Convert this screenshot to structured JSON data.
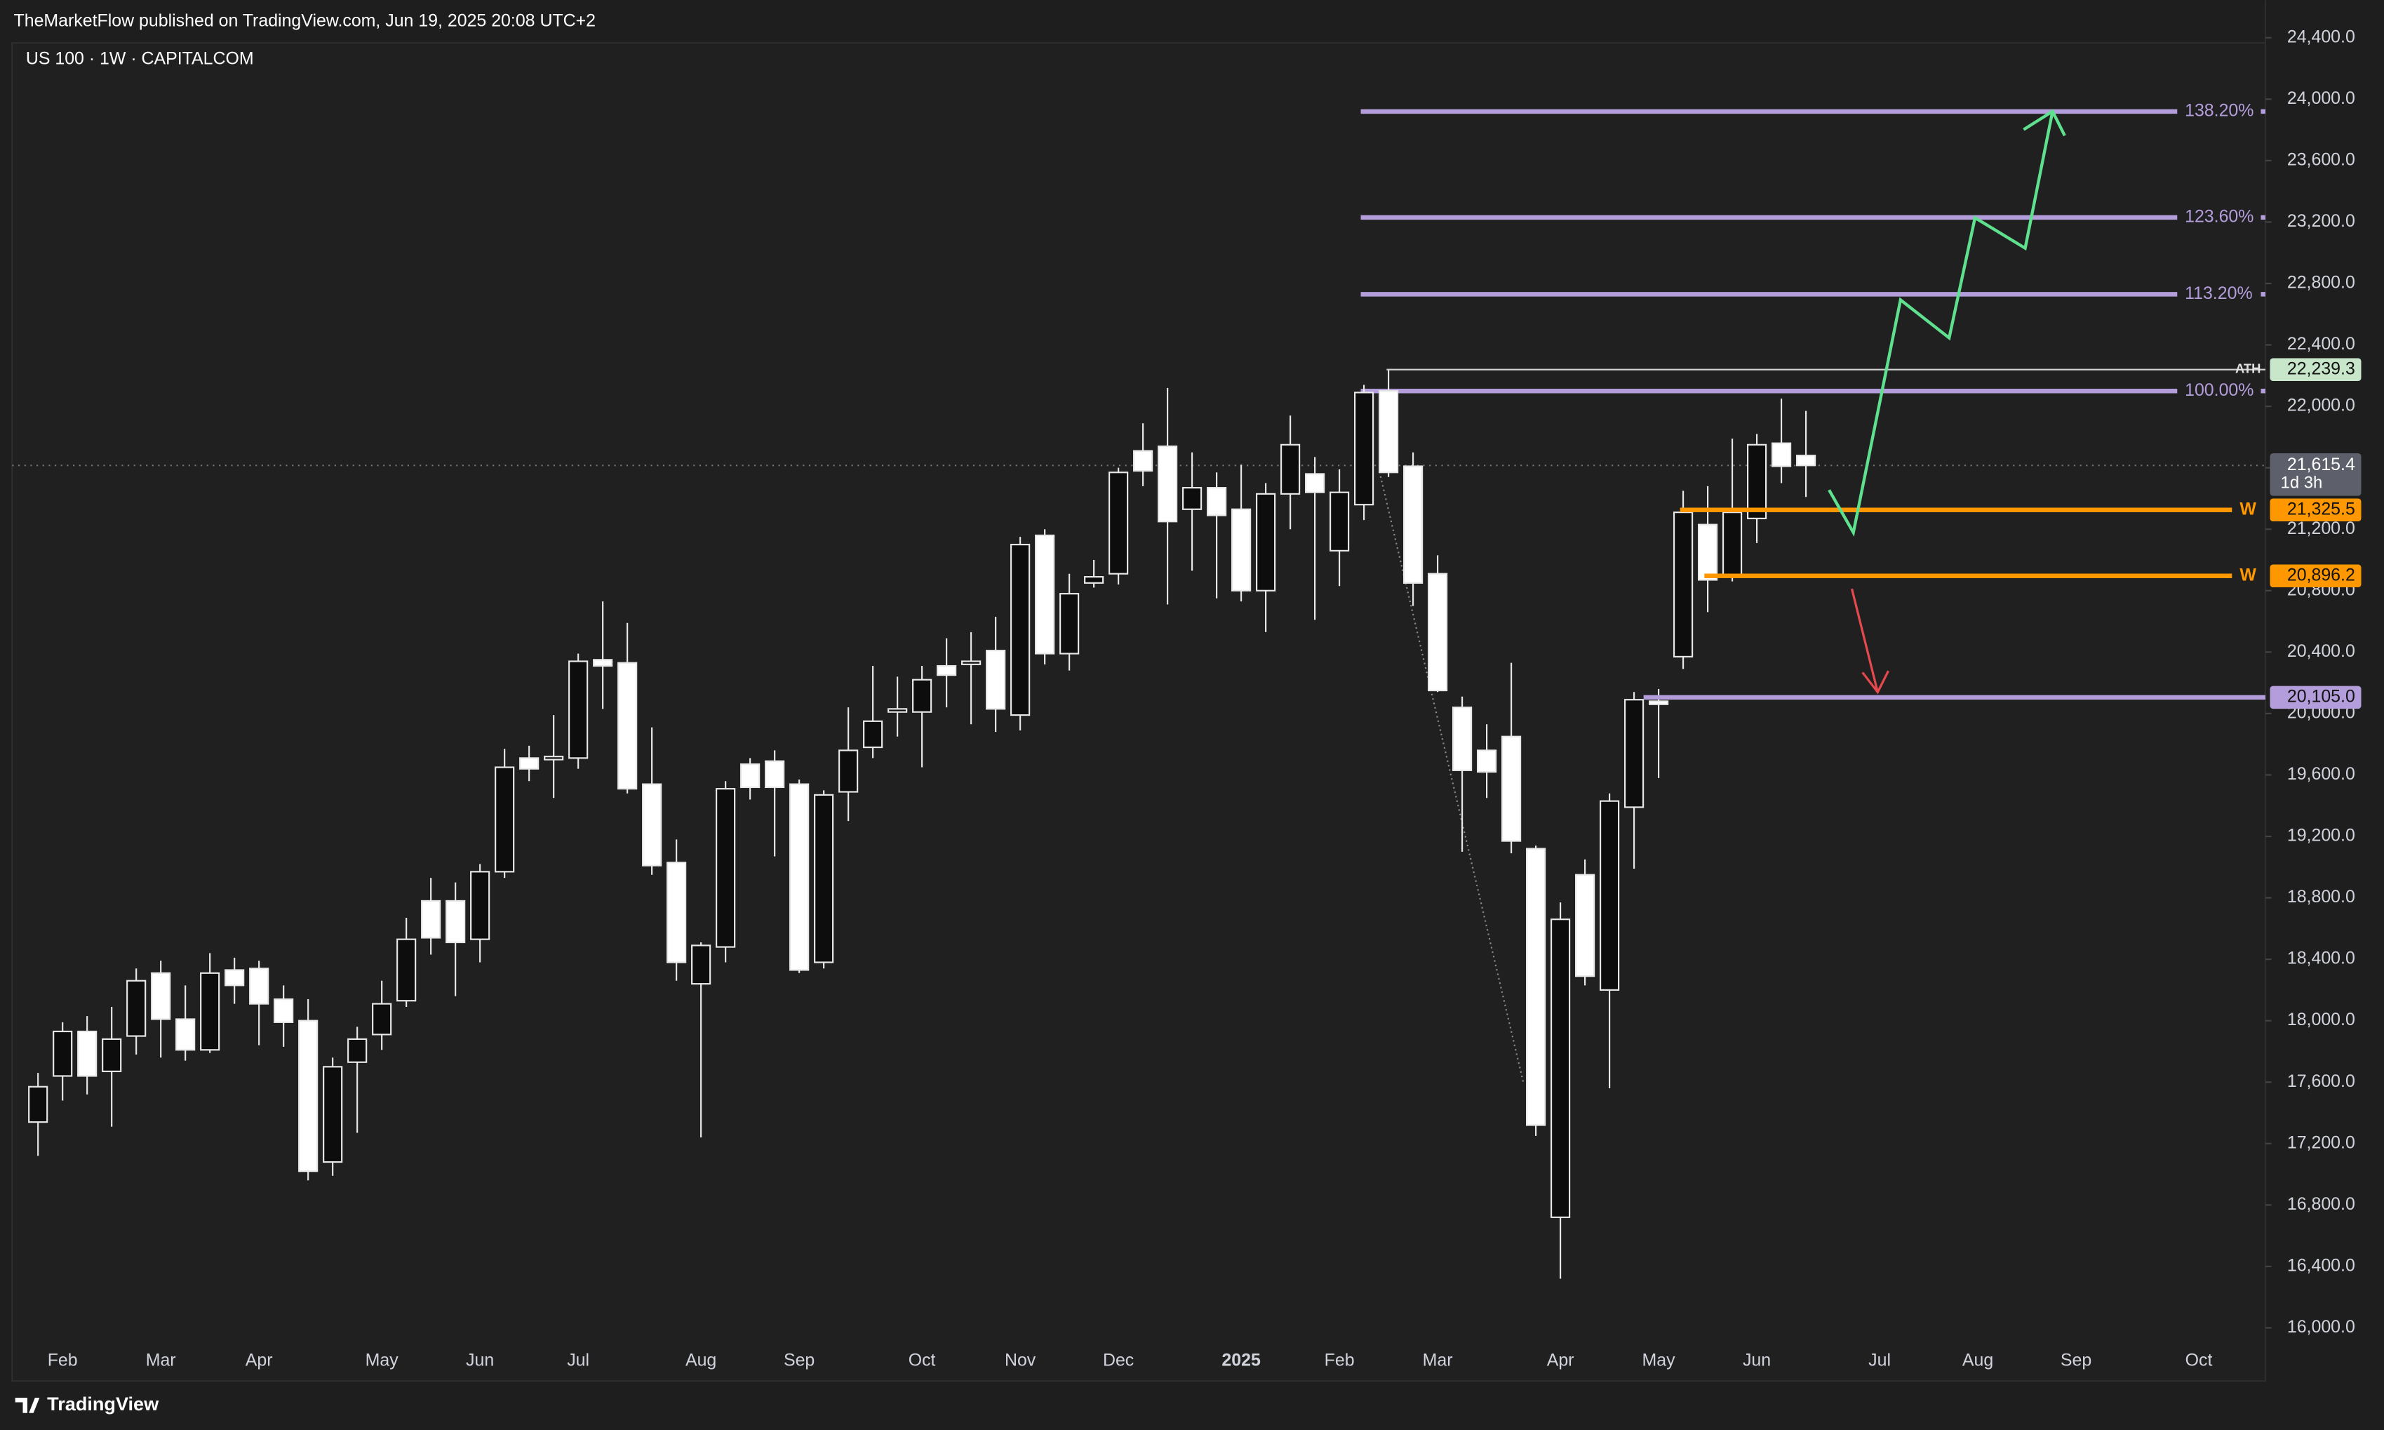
{
  "publisher": "TheMarketFlow published on TradingView.com, Jun 19, 2025 20:08 UTC+2",
  "brand": "TradingView",
  "chart_data": {
    "type": "candlestick",
    "title": "US 100 · 1W · CAPITALCOM",
    "categories": [
      null,
      "Feb",
      null,
      null,
      null,
      "Mar",
      null,
      null,
      null,
      "Apr",
      null,
      null,
      null,
      null,
      "May",
      null,
      null,
      null,
      "Jun",
      null,
      null,
      null,
      "Jul",
      null,
      null,
      null,
      null,
      "Aug",
      null,
      null,
      null,
      "Sep",
      null,
      null,
      null,
      null,
      "Oct",
      null,
      null,
      null,
      "Nov",
      null,
      null,
      null,
      "Dec",
      null,
      null,
      null,
      null,
      "2025",
      null,
      null,
      null,
      "Feb",
      null,
      null,
      null,
      "Mar",
      null,
      null,
      null,
      null,
      "Apr",
      null,
      null,
      null,
      "May",
      null,
      null,
      null,
      "Jun",
      null,
      null,
      null,
      null,
      "Jul",
      null,
      null,
      null,
      "Aug",
      null,
      null,
      null,
      "Sep",
      null,
      null,
      null,
      null,
      "Oct",
      null
    ],
    "open": [
      17340,
      17640,
      17930,
      17670,
      17900,
      18310,
      18010,
      17810,
      18330,
      18340,
      18140,
      18000,
      17080,
      17730,
      17910,
      18130,
      18780,
      18780,
      18530,
      18970,
      19710,
      19700,
      19710,
      20350,
      20330,
      19540,
      19030,
      18240,
      18480,
      19670,
      19690,
      19540,
      18380,
      19490,
      19780,
      20010,
      20010,
      20310,
      20320,
      20410,
      19990,
      21160,
      20390,
      20850,
      20910,
      21710,
      21740,
      21330,
      21470,
      21330,
      20800,
      21430,
      21560,
      21060,
      21360,
      22100,
      21610,
      20910,
      20040,
      19760,
      19850,
      19120,
      16720,
      18950,
      18200,
      19390,
      20080,
      20370,
      21230,
      20890,
      21270,
      21760,
      21680,
      null,
      null,
      null,
      null,
      null,
      null,
      null,
      null,
      null,
      null,
      null,
      null,
      null,
      null,
      null,
      null,
      null
    ],
    "high": [
      17660,
      17990,
      18030,
      18090,
      18340,
      18390,
      18230,
      18440,
      18410,
      18390,
      18230,
      18140,
      17760,
      17960,
      18260,
      18670,
      18930,
      18900,
      19020,
      19770,
      19790,
      19990,
      20390,
      20730,
      20590,
      19910,
      19180,
      18510,
      19560,
      19710,
      19760,
      19570,
      19500,
      20040,
      20310,
      20240,
      20310,
      20490,
      20530,
      20630,
      21150,
      21200,
      20910,
      21000,
      21600,
      21890,
      22120,
      21700,
      21570,
      21620,
      21500,
      21940,
      21670,
      21590,
      22140,
      22240,
      21700,
      21030,
      20110,
      19930,
      20330,
      19140,
      18770,
      19050,
      19480,
      20140,
      20160,
      21450,
      21480,
      21790,
      21820,
      22050,
      21970,
      null,
      null,
      null,
      null,
      null,
      null,
      null,
      null,
      null,
      null,
      null,
      null,
      null,
      null,
      null,
      null,
      null
    ],
    "low": [
      17120,
      17480,
      17520,
      17310,
      17780,
      17760,
      17740,
      17790,
      18110,
      17840,
      17830,
      16960,
      16990,
      17270,
      17810,
      18090,
      18430,
      18160,
      18380,
      18930,
      19560,
      19450,
      19640,
      20030,
      19480,
      18950,
      18260,
      17240,
      18380,
      19440,
      19070,
      18310,
      18340,
      19300,
      19710,
      19850,
      19650,
      20040,
      19930,
      19880,
      19890,
      20320,
      20280,
      20820,
      20840,
      21480,
      20710,
      20930,
      20750,
      20730,
      20530,
      21200,
      20610,
      20830,
      21260,
      21540,
      20700,
      20140,
      19100,
      19450,
      19090,
      17250,
      16320,
      18230,
      17560,
      18990,
      19580,
      20290,
      20660,
      20860,
      21110,
      21500,
      21410,
      null,
      null,
      null,
      null,
      null,
      null,
      null,
      null,
      null,
      null,
      null,
      null,
      null,
      null,
      null,
      null,
      null
    ],
    "close": [
      17570,
      17930,
      17640,
      17880,
      18260,
      18010,
      17810,
      18310,
      18230,
      18110,
      17990,
      17020,
      17700,
      17880,
      18110,
      18530,
      18540,
      18510,
      18970,
      19650,
      19640,
      19720,
      20340,
      20310,
      19510,
      19010,
      18380,
      18490,
      19510,
      19520,
      19520,
      18330,
      19470,
      19760,
      19950,
      20030,
      20220,
      20250,
      20340,
      20030,
      21100,
      20390,
      20780,
      20890,
      21570,
      21580,
      21250,
      21470,
      21290,
      20800,
      21430,
      21750,
      21440,
      21440,
      22090,
      21570,
      20850,
      20150,
      19630,
      19620,
      19170,
      17320,
      18660,
      18290,
      19430,
      20090,
      20060,
      21310,
      20870,
      21310,
      21750,
      21610,
      21615.4,
      null,
      null,
      null,
      null,
      null,
      null,
      null,
      null,
      null,
      null,
      null,
      null,
      null,
      null,
      null,
      null,
      null
    ],
    "up_color": "#0d0d0d",
    "down_color": "#ffffff",
    "wick_color": "#e8e8e8",
    "ylim": [
      15650,
      24400
    ],
    "yticks": [
      {
        "value": 16000,
        "label": "16,000.0"
      },
      {
        "value": 16400,
        "label": "16,400.0"
      },
      {
        "value": 16800,
        "label": "16,800.0"
      },
      {
        "value": 17200,
        "label": "17,200.0"
      },
      {
        "value": 17600,
        "label": "17,600.0"
      },
      {
        "value": 18000,
        "label": "18,000.0"
      },
      {
        "value": 18400,
        "label": "18,400.0"
      },
      {
        "value": 18800,
        "label": "18,800.0"
      },
      {
        "value": 19200,
        "label": "19,200.0"
      },
      {
        "value": 19600,
        "label": "19,600.0"
      },
      {
        "value": 20000,
        "label": "20,000.0"
      },
      {
        "value": 20400,
        "label": "20,400.0"
      },
      {
        "value": 20800,
        "label": "20,800.0"
      },
      {
        "value": 21200,
        "label": "21,200.0"
      },
      {
        "value": 21600,
        "label": "21,600.0"
      },
      {
        "value": 22000,
        "label": "22,000.0"
      },
      {
        "value": 22400,
        "label": "22,400.0"
      },
      {
        "value": 22800,
        "label": "22,800.0"
      },
      {
        "value": 23200,
        "label": "23,200.0"
      },
      {
        "value": 23600,
        "label": "23,600.0"
      },
      {
        "value": 24000,
        "label": "24,000.0"
      },
      {
        "value": 24400,
        "label": "24,400.0"
      }
    ],
    "grid": false,
    "levels": [
      {
        "label": "138.20%",
        "value": 23920,
        "color": "#b39ddb"
      },
      {
        "label": "123.60%",
        "value": 23230,
        "color": "#b39ddb"
      },
      {
        "label": "113.20%",
        "value": 22730,
        "color": "#b39ddb"
      },
      {
        "label": "100.00%",
        "value": 22100,
        "color": "#b39ddb"
      }
    ],
    "price_labels": [
      {
        "tag": "ATH",
        "value": 22239.3,
        "label": "22,239.3",
        "color": "#c8e6c9"
      },
      {
        "tag": "W",
        "value": 21325.5,
        "label": "21,325.5",
        "color": "#ff9800"
      },
      {
        "tag": "W",
        "value": 20896.2,
        "label": "20,896.2",
        "color": "#ff9800"
      },
      {
        "value": 20105.0,
        "label": "20,105.0",
        "color": "#b39ddb"
      }
    ],
    "last_price": {
      "value": 21615.4,
      "label": "21,615.4",
      "countdown": "1d 3h",
      "color": "#5d606b"
    }
  }
}
